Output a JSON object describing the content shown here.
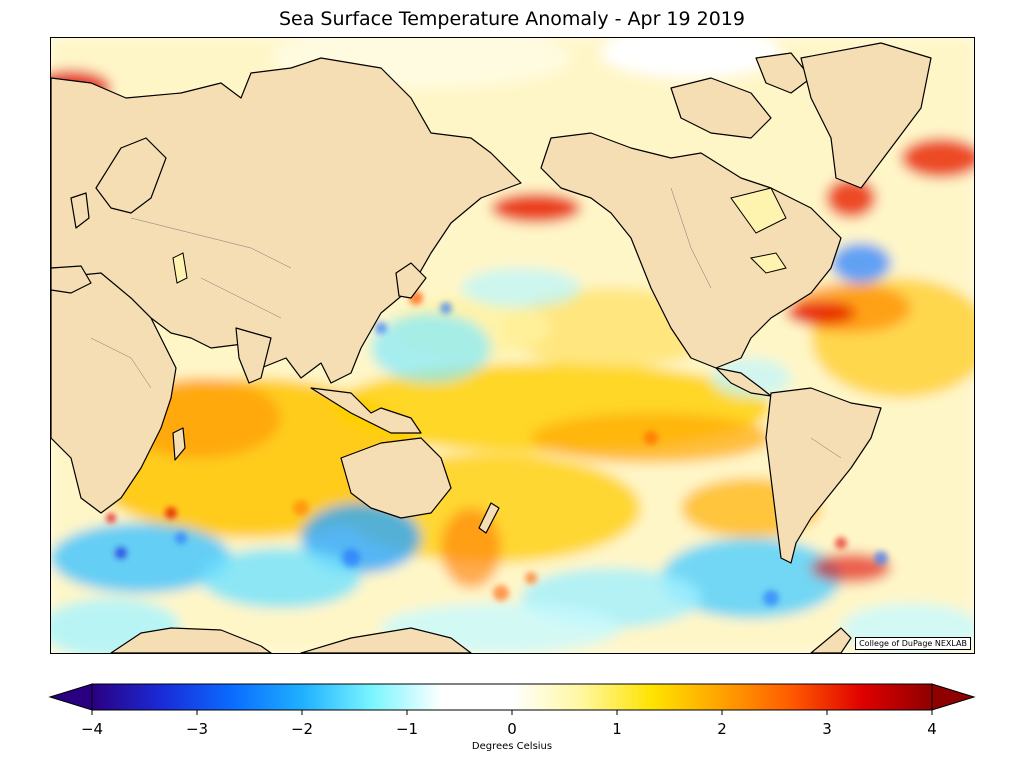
{
  "title": "Sea Surface Temperature Anomaly - Apr 19 2019",
  "credit": "College of DuPage NEXLAB",
  "colorbar": {
    "label": "Degrees Celsius",
    "min": -4,
    "max": 4,
    "ticks": [
      {
        "value": -4,
        "label": "−4"
      },
      {
        "value": -3,
        "label": "−3"
      },
      {
        "value": -2,
        "label": "−2"
      },
      {
        "value": -1,
        "label": "−1"
      },
      {
        "value": 0,
        "label": "0"
      },
      {
        "value": 1,
        "label": "1"
      },
      {
        "value": 2,
        "label": "2"
      },
      {
        "value": 3,
        "label": "3"
      },
      {
        "value": 4,
        "label": "4"
      }
    ],
    "colors": [
      "#2a0080",
      "#1a2bd8",
      "#0a6cff",
      "#1fb0ff",
      "#7af5ff",
      "#ffffff",
      "#ffffff",
      "#fff7a0",
      "#ffe300",
      "#ffa200",
      "#ff5a00",
      "#e00000",
      "#8f0000"
    ]
  },
  "colors": {
    "land": "#f5deb3",
    "coast": "#000000",
    "ocean_base": "#fffbe6"
  }
}
